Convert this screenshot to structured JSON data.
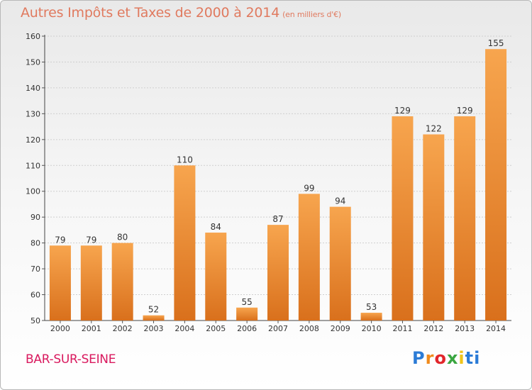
{
  "title": "Autres Impôts et Taxes de 2000 à 2014",
  "subtitle": "(en milliers d'€)",
  "commune": "BAR-SUR-SEINE",
  "logo": {
    "text": "Proxiti",
    "letters": [
      "P",
      "r",
      "o",
      "x",
      "i",
      "ti"
    ]
  },
  "colors": {
    "bar_light": "#f7a54e",
    "bar_dark": "#d9701c",
    "title": "#e07a5f",
    "commune": "#d9195e"
  },
  "chart_data": {
    "type": "bar",
    "title": "Autres Impôts et Taxes de 2000 à 2014",
    "subtitle": "(en milliers d'€)",
    "categories": [
      "2000",
      "2001",
      "2002",
      "2003",
      "2004",
      "2005",
      "2006",
      "2007",
      "2008",
      "2009",
      "2010",
      "2011",
      "2012",
      "2013",
      "2014"
    ],
    "values": [
      79,
      79,
      80,
      52,
      110,
      84,
      55,
      87,
      99,
      94,
      53,
      129,
      122,
      129,
      155
    ],
    "ylim": [
      50,
      160
    ],
    "yticks": [
      50,
      60,
      70,
      80,
      90,
      100,
      110,
      120,
      130,
      140,
      150,
      160
    ],
    "grid": true,
    "xlabel": "",
    "ylabel": ""
  }
}
